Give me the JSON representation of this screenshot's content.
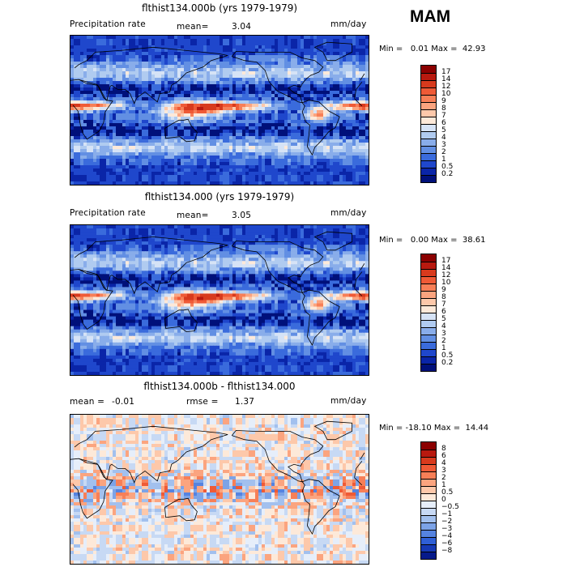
{
  "season": "MAM",
  "panels": [
    {
      "title": "flthist134.000b (yrs 1979-1979)",
      "left_label": "Precipitation rate",
      "stat1_label": "mean=",
      "stat1_value": "3.04",
      "stat2_label": "",
      "stat2_value": "",
      "units": "mm/day",
      "minmax": "Min =   0.01 Max =  42.93",
      "type": "abs",
      "colorbar_labels": [
        "17",
        "14",
        "12",
        "10",
        "9",
        "8",
        "7",
        "6",
        "5",
        "4",
        "3",
        "2",
        "1",
        "0.5",
        "0.2"
      ]
    },
    {
      "title": "flthist134.000 (yrs 1979-1979)",
      "left_label": "Precipitation rate",
      "stat1_label": "mean=",
      "stat1_value": "3.05",
      "stat2_label": "",
      "stat2_value": "",
      "units": "mm/day",
      "minmax": "Min =   0.00 Max =  38.61",
      "type": "abs",
      "colorbar_labels": [
        "17",
        "14",
        "12",
        "10",
        "9",
        "8",
        "7",
        "6",
        "5",
        "4",
        "3",
        "2",
        "1",
        "0.5",
        "0.2"
      ]
    },
    {
      "title": "flthist134.000b - flthist134.000",
      "left_label": "",
      "stat1_label": "mean =",
      "stat1_value": "-0.01",
      "stat2_label": "rmse =",
      "stat2_value": "1.37",
      "units": "mm/day",
      "minmax": "Min = -18.10 Max =  14.44",
      "type": "diff",
      "colorbar_labels": [
        "8",
        "6",
        "4",
        "3",
        "2",
        "1",
        "0.5",
        "0",
        "-0.5",
        "-1",
        "-2",
        "-3",
        "-4",
        "-6",
        "-8"
      ]
    }
  ],
  "colors": {
    "abs": [
      "#8b0000",
      "#b8190f",
      "#d83a1d",
      "#ef5a36",
      "#f77f57",
      "#fba47f",
      "#fdc8aa",
      "#fde9d9",
      "#d6e3f6",
      "#b0cbf0",
      "#89adea",
      "#628fe3",
      "#3a6bdc",
      "#1f47cc",
      "#0a25a8",
      "#00107a"
    ],
    "diff": [
      "#8b0000",
      "#b8190f",
      "#d83a1d",
      "#ef5a36",
      "#f77f57",
      "#fba47f",
      "#fdc8aa",
      "#fde9d9",
      "#e6eefa",
      "#c7d9f4",
      "#a2c0ee",
      "#7ca3e7",
      "#5583e0",
      "#2f5fd6",
      "#1639b5",
      "#061a8a"
    ]
  }
}
